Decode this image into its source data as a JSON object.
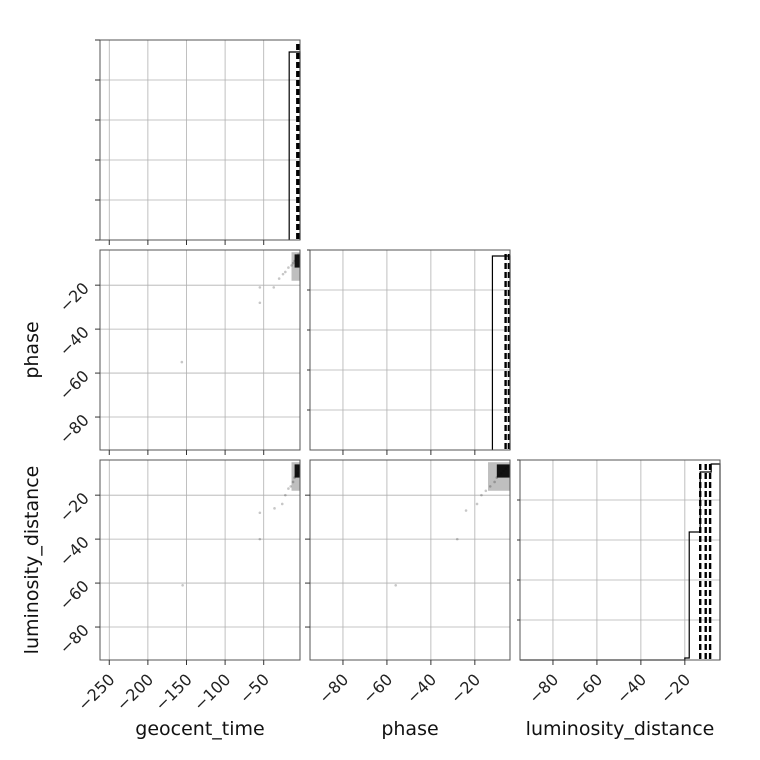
{
  "chart_data": {
    "type": "corner",
    "parameters": [
      "geocent_time",
      "phase",
      "luminosity_distance"
    ],
    "axis_labels": {
      "x": [
        "geocent_time",
        "phase",
        "luminosity_distance"
      ],
      "y": [
        "",
        "phase",
        "luminosity_distance"
      ]
    },
    "ranges": {
      "geocent_time": [
        -262,
        -3
      ],
      "phase": [
        -95,
        -4
      ],
      "luminosity_distance": [
        -95,
        -4
      ]
    },
    "ticks": {
      "geocent_time": [
        -250,
        -200,
        -150,
        -100,
        -50
      ],
      "phase": [
        -80,
        -60,
        -40,
        -20
      ],
      "luminosity_distance": [
        -80,
        -60,
        -40,
        -20
      ]
    },
    "tick_labels": {
      "geocent_time": [
        "−250",
        "−200",
        "−150",
        "−100",
        "−50"
      ],
      "phase": [
        "−80",
        "−60",
        "−40",
        "−20"
      ],
      "luminosity_distance": [
        "−80",
        "−60",
        "−40",
        "−20"
      ]
    },
    "grid": true,
    "histograms": [
      {
        "param": "geocent_time",
        "bins": [
          [
            -17,
            -10,
            0.94
          ],
          [
            -10,
            -3,
            0.94
          ]
        ],
        "quantile_lines": [
          -6.5,
          -4.0
        ]
      },
      {
        "param": "phase",
        "bins": [
          [
            -12,
            -8,
            0.97
          ],
          [
            -8,
            -4,
            0.97
          ]
        ],
        "quantile_lines": [
          -6.0,
          -4.5
        ]
      },
      {
        "param": "luminosity_distance",
        "bins": [
          [
            -95,
            -20,
            0.0
          ],
          [
            -20,
            -18,
            0.01
          ],
          [
            -18,
            -13,
            0.64
          ],
          [
            -13,
            -8,
            0.94
          ],
          [
            -8,
            -4,
            0.98
          ]
        ],
        "quantile_lines": [
          -13.0,
          -10.5,
          -8.5
        ]
      }
    ],
    "scatter": [
      {
        "x": "geocent_time",
        "y": "phase",
        "points": [
          [
            -156,
            -55
          ],
          [
            -55,
            -21
          ],
          [
            -55,
            -28
          ],
          [
            -37,
            -21
          ],
          [
            -30,
            -17
          ],
          [
            -25,
            -15
          ],
          [
            -22,
            -14
          ],
          [
            -18,
            -12
          ],
          [
            -14,
            -11
          ],
          [
            -12,
            -10
          ],
          [
            -10,
            -9
          ],
          [
            -8,
            -8
          ],
          [
            -6,
            -7
          ],
          [
            -5,
            -6
          ]
        ]
      },
      {
        "x": "geocent_time",
        "y": "luminosity_distance",
        "points": [
          [
            -155,
            -61
          ],
          [
            -55,
            -28
          ],
          [
            -55,
            -40
          ],
          [
            -36,
            -26
          ],
          [
            -26,
            -24
          ],
          [
            -22,
            -20
          ],
          [
            -18,
            -17
          ],
          [
            -15,
            -16
          ],
          [
            -12,
            -14
          ],
          [
            -10,
            -12
          ],
          [
            -8,
            -11
          ],
          [
            -6,
            -10
          ],
          [
            -5,
            -8
          ],
          [
            -4,
            -7
          ]
        ]
      },
      {
        "x": "phase",
        "y": "luminosity_distance",
        "points": [
          [
            -56,
            -61
          ],
          [
            -28,
            -40
          ],
          [
            -24,
            -27
          ],
          [
            -19,
            -24
          ],
          [
            -17,
            -20
          ],
          [
            -15,
            -18
          ],
          [
            -13,
            -16
          ],
          [
            -11,
            -14
          ],
          [
            -10,
            -12
          ],
          [
            -9,
            -11
          ],
          [
            -8,
            -10
          ],
          [
            -7,
            -9
          ],
          [
            -6,
            -8
          ],
          [
            -5,
            -7
          ]
        ]
      }
    ]
  }
}
